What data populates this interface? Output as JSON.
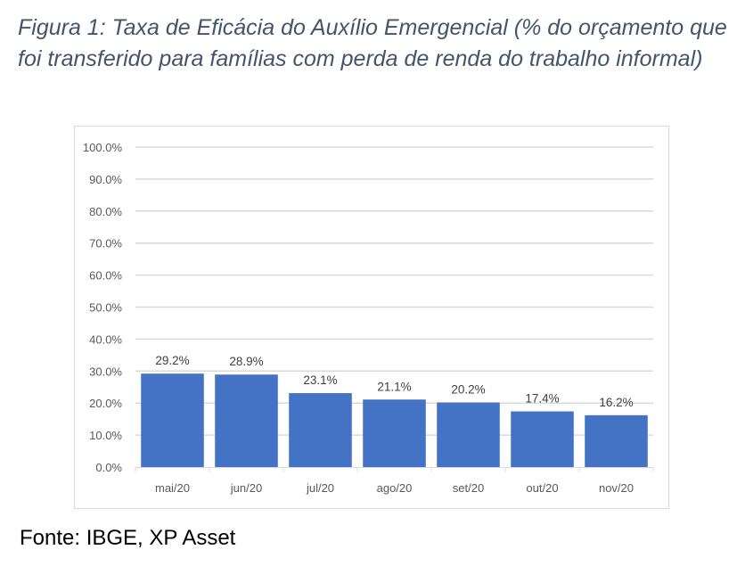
{
  "chart_data": {
    "type": "bar",
    "title": "Figura 1: Taxa de Eficácia do Auxílio Emergencial (% do orçamento que foi transferido para famílias com perda de renda do trabalho informal)",
    "categories": [
      "mai/20",
      "jun/20",
      "jul/20",
      "ago/20",
      "set/20",
      "out/20",
      "nov/20"
    ],
    "values": [
      29.2,
      28.9,
      23.1,
      21.1,
      20.2,
      17.4,
      16.2
    ],
    "data_labels": [
      "29.2%",
      "28.9%",
      "23.1%",
      "21.1%",
      "20.2%",
      "17.4%",
      "16.2%"
    ],
    "yticks": [
      0,
      10,
      20,
      30,
      40,
      50,
      60,
      70,
      80,
      90,
      100
    ],
    "ytick_labels": [
      "0.0%",
      "10.0%",
      "20.0%",
      "30.0%",
      "40.0%",
      "50.0%",
      "60.0%",
      "70.0%",
      "80.0%",
      "90.0%",
      "100.0%"
    ],
    "xlabel": "",
    "ylabel": "",
    "ylim": [
      0,
      100
    ],
    "grid": true,
    "bar_color": "#4472c4",
    "source": "Fonte: IBGE, XP Asset"
  }
}
